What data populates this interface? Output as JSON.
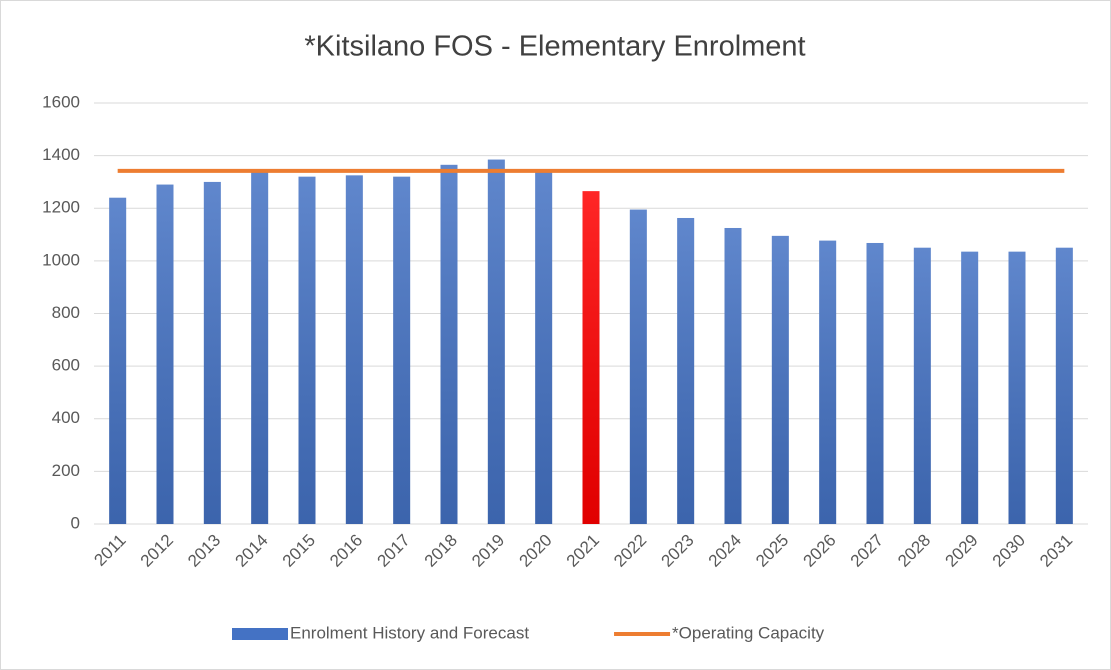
{
  "chart_data": {
    "type": "bar",
    "title": "*Kitsilano FOS - Elementary Enrolment",
    "categories": [
      "2011",
      "2012",
      "2013",
      "2014",
      "2015",
      "2016",
      "2017",
      "2018",
      "2019",
      "2020",
      "2021",
      "2022",
      "2023",
      "2024",
      "2025",
      "2026",
      "2027",
      "2028",
      "2029",
      "2030",
      "2031"
    ],
    "series": [
      {
        "name": "Enrolment History and Forecast",
        "type": "bar",
        "color": "#4472c4",
        "colors": [
          "#4472c4",
          "#4472c4",
          "#4472c4",
          "#4472c4",
          "#4472c4",
          "#4472c4",
          "#4472c4",
          "#4472c4",
          "#4472c4",
          "#4472c4",
          "#ff0000",
          "#4472c4",
          "#4472c4",
          "#4472c4",
          "#4472c4",
          "#4472c4",
          "#4472c4",
          "#4472c4",
          "#4472c4",
          "#4472c4",
          "#4472c4"
        ],
        "values": [
          1240,
          1290,
          1300,
          1340,
          1320,
          1325,
          1320,
          1365,
          1385,
          1340,
          1265,
          1195,
          1163,
          1125,
          1095,
          1077,
          1068,
          1050,
          1035,
          1035,
          1050
        ]
      },
      {
        "name": "*Operating Capacity",
        "type": "line",
        "color": "#ed7d31",
        "values": [
          1342,
          1342,
          1342,
          1342,
          1342,
          1342,
          1342,
          1342,
          1342,
          1342,
          1342,
          1342,
          1342,
          1342,
          1342,
          1342,
          1342,
          1342,
          1342,
          1342,
          1342
        ]
      }
    ],
    "ylim": [
      0,
      1600
    ],
    "yticks": [
      0,
      200,
      400,
      600,
      800,
      1000,
      1200,
      1400,
      1600
    ],
    "grid": true,
    "legend": "bottom"
  }
}
